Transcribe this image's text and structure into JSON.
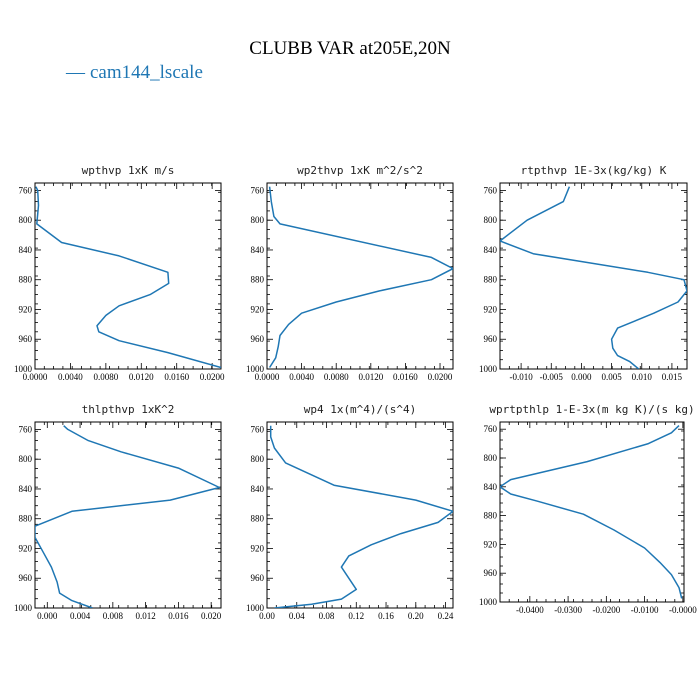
{
  "title": "CLUBB VAR at205E,20N",
  "legend": {
    "label": "cam144_lscale",
    "symbol": "—",
    "color": "#1f77b4",
    "position": "top-left"
  },
  "chart_data": [
    {
      "type": "line",
      "title": "wpthvp  1xK m/s",
      "xlim": [
        0,
        0.021
      ],
      "ylim": [
        750,
        1000
      ],
      "y_inverted": true,
      "xticks": [
        "0.0000",
        "0.0040",
        "0.0080",
        "0.0120",
        "0.0160",
        "0.0200"
      ],
      "xtick_values": [
        0,
        0.004,
        0.008,
        0.012,
        0.016,
        0.02
      ],
      "yticks": [
        760,
        800,
        840,
        880,
        920,
        960,
        1000
      ],
      "series": [
        {
          "color": "#1f77b4",
          "x": [
            0.0001,
            0.0003,
            0.0004,
            0.0002,
            0.003,
            0.0095,
            0.015,
            0.0151,
            0.013,
            0.0095,
            0.008,
            0.007,
            0.0072,
            0.0095,
            0.015,
            0.021
          ],
          "y": [
            755,
            760,
            780,
            805,
            830,
            848,
            870,
            885,
            900,
            915,
            928,
            942,
            950,
            962,
            978,
            998
          ]
        }
      ]
    },
    {
      "type": "line",
      "title": "wp2thvp  1xK m^2/s^2",
      "xlim": [
        0,
        0.0215
      ],
      "ylim": [
        750,
        1000
      ],
      "y_inverted": true,
      "xticks": [
        "0.0000",
        "0.0040",
        "0.0080",
        "0.0120",
        "0.0160",
        "0.0200"
      ],
      "xtick_values": [
        0,
        0.004,
        0.008,
        0.012,
        0.016,
        0.02
      ],
      "yticks": [
        760,
        800,
        840,
        880,
        920,
        960,
        1000
      ],
      "series": [
        {
          "color": "#1f77b4",
          "x": [
            0.0003,
            0.0005,
            0.0008,
            0.0015,
            0.019,
            0.0215,
            0.019,
            0.013,
            0.008,
            0.004,
            0.0025,
            0.0015,
            0.0013,
            0.001,
            0.0003
          ],
          "y": [
            755,
            775,
            795,
            805,
            850,
            865,
            880,
            895,
            910,
            925,
            940,
            955,
            970,
            985,
            998
          ]
        }
      ]
    },
    {
      "type": "line",
      "title": "rtpthvp  1E-3x(kg/kg) K",
      "xlim": [
        -0.0135,
        0.0175
      ],
      "ylim": [
        750,
        1000
      ],
      "y_inverted": true,
      "xticks": [
        "-0.010",
        "-0.005",
        "0.000",
        "0.005",
        "0.010",
        "0.015"
      ],
      "xtick_values": [
        -0.01,
        -0.005,
        0,
        0.005,
        0.01,
        0.015
      ],
      "yticks": [
        760,
        800,
        840,
        880,
        920,
        960,
        1000
      ],
      "series": [
        {
          "color": "#1f77b4",
          "x": [
            -0.002,
            -0.003,
            -0.009,
            -0.0135,
            -0.008,
            0.011,
            0.017,
            0.0175,
            0.016,
            0.012,
            0.006,
            0.005,
            0.0052,
            0.006,
            0.008,
            0.0095
          ],
          "y": [
            755,
            775,
            800,
            828,
            845,
            870,
            880,
            895,
            910,
            925,
            945,
            960,
            972,
            982,
            990,
            1000
          ]
        }
      ]
    },
    {
      "type": "line",
      "title": "thlpthvp  1xK^2",
      "xlim": [
        -0.0015,
        0.0212
      ],
      "ylim": [
        750,
        1000
      ],
      "y_inverted": true,
      "xticks": [
        "0.000",
        "0.004",
        "0.008",
        "0.012",
        "0.016",
        "0.020"
      ],
      "xtick_values": [
        0,
        0.004,
        0.008,
        0.012,
        0.016,
        0.02
      ],
      "yticks": [
        760,
        800,
        840,
        880,
        920,
        960,
        1000
      ],
      "series": [
        {
          "color": "#1f77b4",
          "x": [
            0.002,
            0.0025,
            0.005,
            0.009,
            0.016,
            0.021,
            0.015,
            0.003,
            -0.0015,
            -0.0015,
            -0.0005,
            0.0005,
            0.0012,
            0.0015,
            0.003,
            0.0055
          ],
          "y": [
            755,
            760,
            775,
            790,
            812,
            838,
            855,
            870,
            890,
            905,
            925,
            945,
            965,
            980,
            990,
            1000
          ]
        }
      ]
    },
    {
      "type": "line",
      "title": "wp4  1x(m^4)/(s^4)",
      "xlim": [
        0,
        0.25
      ],
      "ylim": [
        750,
        1000
      ],
      "y_inverted": true,
      "xticks": [
        "0.00",
        "0.04",
        "0.08",
        "0.12",
        "0.16",
        "0.20",
        "0.24"
      ],
      "xtick_values": [
        0,
        0.04,
        0.08,
        0.12,
        0.16,
        0.2,
        0.24
      ],
      "yticks": [
        760,
        800,
        840,
        880,
        920,
        960,
        1000
      ],
      "series": [
        {
          "color": "#1f77b4",
          "x": [
            0.005,
            0.005,
            0.01,
            0.025,
            0.09,
            0.2,
            0.25,
            0.23,
            0.18,
            0.14,
            0.11,
            0.1,
            0.11,
            0.12,
            0.1,
            0.06,
            0.01
          ],
          "y": [
            755,
            770,
            785,
            805,
            835,
            855,
            870,
            885,
            900,
            915,
            930,
            945,
            960,
            975,
            988,
            995,
            1000
          ]
        }
      ]
    },
    {
      "type": "line",
      "title": "wprtpthlp  1-E-3x(m kg K)/(s kg)",
      "xlim": [
        -0.0478,
        0.0003
      ],
      "ylim": [
        750,
        1000
      ],
      "y_inverted": true,
      "xticks": [
        "-0.0400",
        "-0.0300",
        "-0.0200",
        "-0.0100",
        "-0.0000"
      ],
      "xtick_values": [
        -0.04,
        -0.03,
        -0.02,
        -0.01,
        0
      ],
      "yticks": [
        760,
        800,
        840,
        880,
        920,
        960,
        1000
      ],
      "series": [
        {
          "color": "#1f77b4",
          "x": [
            -0.001,
            -0.003,
            -0.009,
            -0.025,
            -0.045,
            -0.0478,
            -0.045,
            -0.038,
            -0.026,
            -0.018,
            -0.01,
            -0.006,
            -0.003,
            -0.001,
            -0.0003
          ],
          "y": [
            755,
            765,
            780,
            805,
            830,
            840,
            850,
            860,
            878,
            900,
            925,
            945,
            962,
            980,
            995
          ]
        }
      ]
    }
  ]
}
